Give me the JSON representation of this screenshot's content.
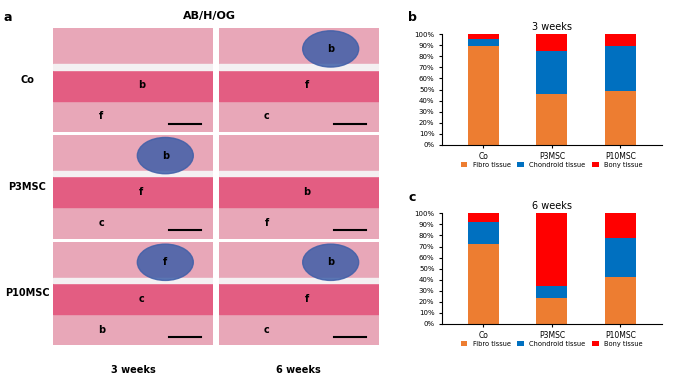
{
  "panel_labels": [
    "a",
    "b",
    "c"
  ],
  "panel_a": {
    "title": "AB/H/OG",
    "rows": [
      "Co",
      "P3MSC",
      "P10MSC"
    ],
    "columns": [
      "3 weeks",
      "6 weeks"
    ],
    "cells": [
      [
        [
          "b",
          "f"
        ],
        [
          "f",
          "c",
          "b"
        ]
      ],
      [
        [
          "f",
          "c",
          "b"
        ],
        [
          "b",
          "f"
        ]
      ],
      [
        [
          "c",
          "b",
          "f"
        ],
        [
          "f",
          "c",
          "b"
        ]
      ]
    ]
  },
  "chart_data": [
    {
      "type": "bar",
      "stacked": true,
      "title": "3 weeks",
      "legend": "lower center",
      "grid": false,
      "categories": [
        "Co",
        "P3MSC",
        "P10MSC"
      ],
      "ylim": [
        0,
        100
      ],
      "yticks": [
        {
          "value": 0,
          "label": "0%"
        },
        {
          "value": 10,
          "label": "10%"
        },
        {
          "value": 20,
          "label": "20%"
        },
        {
          "value": 30,
          "label": "30%"
        },
        {
          "value": 40,
          "label": "40%"
        },
        {
          "value": 50,
          "label": "50%"
        },
        {
          "value": 60,
          "label": "60%"
        },
        {
          "value": 70,
          "label": "70%"
        },
        {
          "value": 80,
          "label": "80%"
        },
        {
          "value": 90,
          "label": "90%"
        },
        {
          "value": 100,
          "label": "100%"
        }
      ],
      "series": [
        {
          "name": "Fibro tissue",
          "color": "#ed7d31",
          "values": [
            89,
            46,
            49
          ]
        },
        {
          "name": "Chondroid tissue",
          "color": "#0070c0",
          "values": [
            7,
            39,
            40
          ]
        },
        {
          "name": "Bony tissue",
          "color": "#ff0000",
          "values": [
            4,
            15,
            11
          ]
        }
      ]
    },
    {
      "type": "bar",
      "stacked": true,
      "title": "6 weeks",
      "legend": "lower center",
      "grid": false,
      "categories": [
        "Co",
        "P3MSC",
        "P10MSC"
      ],
      "ylim": [
        0,
        100
      ],
      "yticks": [
        {
          "value": 0,
          "label": "0%"
        },
        {
          "value": 10,
          "label": "10%"
        },
        {
          "value": 20,
          "label": "20%"
        },
        {
          "value": 30,
          "label": "30%"
        },
        {
          "value": 40,
          "label": "40%"
        },
        {
          "value": 50,
          "label": "50%"
        },
        {
          "value": 60,
          "label": "60%"
        },
        {
          "value": 70,
          "label": "70%"
        },
        {
          "value": 80,
          "label": "80%"
        },
        {
          "value": 90,
          "label": "90%"
        },
        {
          "value": 100,
          "label": "100%"
        }
      ],
      "series": [
        {
          "name": "Fibro tissue",
          "color": "#ed7d31",
          "values": [
            72,
            23,
            42
          ]
        },
        {
          "name": "Chondroid tissue",
          "color": "#0070c0",
          "values": [
            20,
            11,
            36
          ]
        },
        {
          "name": "Bony tissue",
          "color": "#ff0000",
          "values": [
            8,
            66,
            22
          ]
        }
      ]
    }
  ]
}
